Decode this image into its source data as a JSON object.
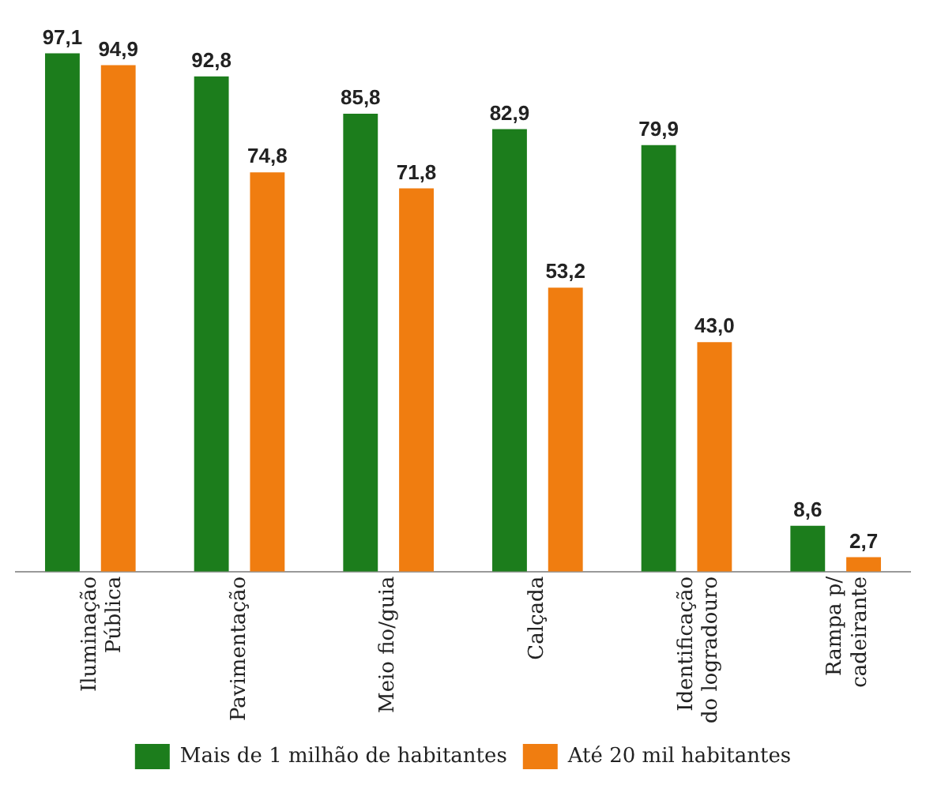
{
  "chart_data": {
    "type": "bar",
    "categories": [
      "Iluminação\nPública",
      "Pavimentação",
      "Meio fio/guia",
      "Calçada",
      "Identificação\ndo logradouro",
      "Rampa p/\ncadeirante"
    ],
    "series": [
      {
        "name": "Mais de 1 milhão de habitantes",
        "color": "#1c7d1c",
        "values": [
          97.1,
          92.8,
          85.8,
          82.9,
          79.9,
          8.6
        ],
        "value_labels": [
          "97,1",
          "92,8",
          "85,8",
          "82,9",
          "79,9",
          "8,6"
        ]
      },
      {
        "name": "Até 20 mil habitantes",
        "color": "#f07d10",
        "values": [
          94.9,
          74.8,
          71.8,
          53.2,
          43.0,
          2.7
        ],
        "value_labels": [
          "94,9",
          "74,8",
          "71,8",
          "53,2",
          "43,0",
          "2,7"
        ]
      }
    ],
    "legend": "bottom",
    "grid": false
  }
}
